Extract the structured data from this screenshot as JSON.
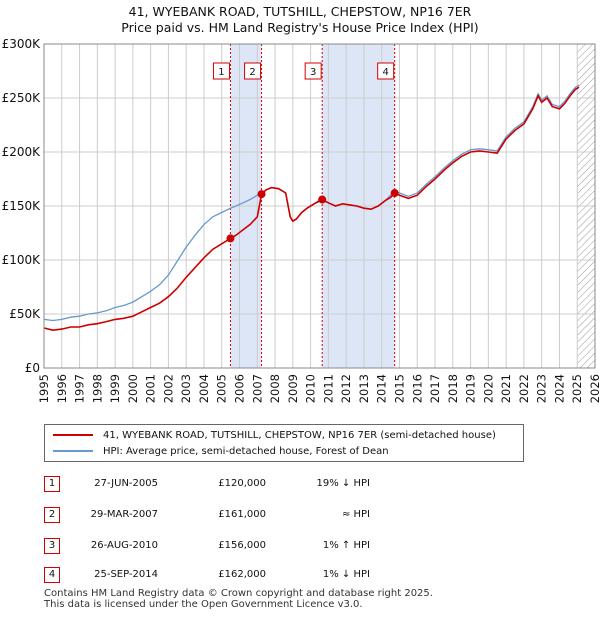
{
  "title_line1": "41, WYEBANK ROAD, TUTSHILL, CHEPSTOW, NP16 7ER",
  "title_line2": "Price paid vs. HM Land Registry's House Price Index (HPI)",
  "chart_data": {
    "type": "line",
    "xlim": [
      1995,
      2026
    ],
    "ylim": [
      0,
      300000
    ],
    "x_ticks": [
      1995,
      1996,
      1997,
      1998,
      1999,
      2000,
      2001,
      2002,
      2003,
      2004,
      2005,
      2006,
      2007,
      2008,
      2009,
      2010,
      2011,
      2012,
      2013,
      2014,
      2015,
      2016,
      2017,
      2018,
      2019,
      2020,
      2021,
      2022,
      2023,
      2024,
      2025,
      2026
    ],
    "y_ticks": [
      0,
      50000,
      100000,
      150000,
      200000,
      250000,
      300000
    ],
    "y_tick_labels": [
      "£0",
      "£50K",
      "£100K",
      "£150K",
      "£200K",
      "£250K",
      "£300K"
    ],
    "hatch_from": 2025.0,
    "series": [
      {
        "name": "41, WYEBANK ROAD, TUTSHILL, CHEPSTOW, NP16 7ER (semi-detached house)",
        "color": "#cc0000",
        "x": [
          1995.0,
          1995.5,
          1996.0,
          1996.5,
          1997.0,
          1997.5,
          1998.0,
          1998.5,
          1999.0,
          1999.5,
          2000.0,
          2000.5,
          2001.0,
          2001.5,
          2002.0,
          2002.5,
          2003.0,
          2003.5,
          2004.0,
          2004.5,
          2005.0,
          2005.49,
          2005.8,
          2006.2,
          2006.6,
          2007.0,
          2007.24,
          2007.5,
          2007.8,
          2008.2,
          2008.6,
          2008.85,
          2009.0,
          2009.2,
          2009.5,
          2009.8,
          2010.2,
          2010.5,
          2010.65,
          2011.0,
          2011.4,
          2011.8,
          2012.2,
          2012.6,
          2013.0,
          2013.4,
          2013.8,
          2014.2,
          2014.5,
          2014.73,
          2015.0,
          2015.5,
          2016.0,
          2016.5,
          2017.0,
          2017.5,
          2018.0,
          2018.5,
          2019.0,
          2019.5,
          2020.0,
          2020.5,
          2021.0,
          2021.5,
          2022.0,
          2022.5,
          2022.8,
          2023.0,
          2023.3,
          2023.6,
          2024.0,
          2024.3,
          2024.6,
          2024.9,
          2025.1
        ],
        "y": [
          37000,
          35000,
          36000,
          38000,
          38000,
          40000,
          41000,
          43000,
          45000,
          46000,
          48000,
          52000,
          56000,
          60000,
          66000,
          74000,
          84000,
          93000,
          102000,
          110000,
          115000,
          120000,
          123000,
          128000,
          133000,
          140000,
          161000,
          165000,
          167000,
          166000,
          162000,
          140000,
          136000,
          138000,
          144000,
          148000,
          152000,
          155000,
          156000,
          153000,
          150000,
          152000,
          151000,
          150000,
          148000,
          147000,
          150000,
          155000,
          158000,
          162000,
          160000,
          157000,
          160000,
          168000,
          175000,
          183000,
          190000,
          196000,
          200000,
          201000,
          200000,
          199000,
          212000,
          220000,
          226000,
          240000,
          252000,
          246000,
          250000,
          242000,
          240000,
          245000,
          252000,
          258000,
          260000
        ]
      },
      {
        "name": "HPI: Average price, semi-detached house, Forest of Dean",
        "color": "#6699cc",
        "x": [
          1995.0,
          1995.5,
          1996.0,
          1996.5,
          1997.0,
          1997.5,
          1998.0,
          1998.5,
          1999.0,
          1999.5,
          2000.0,
          2000.5,
          2001.0,
          2001.5,
          2002.0,
          2002.5,
          2003.0,
          2003.5,
          2004.0,
          2004.5,
          2005.0,
          2005.49,
          2005.8,
          2006.2,
          2006.6,
          2007.0,
          2007.24,
          2007.5,
          2007.8,
          2008.2,
          2008.6,
          2008.85,
          2009.0,
          2009.2,
          2009.5,
          2009.8,
          2010.2,
          2010.5,
          2010.65,
          2011.0,
          2011.4,
          2011.8,
          2012.2,
          2012.6,
          2013.0,
          2013.4,
          2013.8,
          2014.2,
          2014.5,
          2014.73,
          2015.0,
          2015.5,
          2016.0,
          2016.5,
          2017.0,
          2017.5,
          2018.0,
          2018.5,
          2019.0,
          2019.5,
          2020.0,
          2020.5,
          2021.0,
          2021.5,
          2022.0,
          2022.5,
          2022.8,
          2023.0,
          2023.3,
          2023.6,
          2024.0,
          2024.3,
          2024.6,
          2024.9,
          2025.1
        ],
        "y": [
          45000,
          44000,
          45000,
          47000,
          48000,
          50000,
          51000,
          53000,
          56000,
          58000,
          61000,
          66000,
          71000,
          77000,
          86000,
          99000,
          112000,
          123000,
          133000,
          140000,
          144000,
          148000,
          150000,
          153000,
          156000,
          160000,
          162000,
          165000,
          167000,
          166000,
          162000,
          140000,
          136000,
          138000,
          144000,
          148000,
          152000,
          154000,
          155000,
          153000,
          150000,
          152000,
          151000,
          150000,
          148000,
          147000,
          150000,
          155000,
          160000,
          164000,
          162000,
          159000,
          162000,
          170000,
          177000,
          185000,
          192000,
          198000,
          202000,
          203000,
          202000,
          201000,
          214000,
          222000,
          228000,
          242000,
          254000,
          248000,
          252000,
          244000,
          242000,
          247000,
          254000,
          260000,
          262000
        ]
      }
    ],
    "sales": [
      {
        "label": "1",
        "x": 2005.49,
        "y": 120000
      },
      {
        "label": "2",
        "x": 2007.24,
        "y": 161000
      },
      {
        "label": "3",
        "x": 2010.65,
        "y": 156000
      },
      {
        "label": "4",
        "x": 2014.73,
        "y": 162000
      }
    ],
    "shaded_spans": [
      [
        2005.49,
        2007.24
      ],
      [
        2010.65,
        2014.73
      ]
    ]
  },
  "legend": {
    "property": "41, WYEBANK ROAD, TUTSHILL, CHEPSTOW, NP16 7ER (semi-detached house)",
    "hpi": "HPI: Average price, semi-detached house, Forest of Dean"
  },
  "transactions": [
    {
      "num": "1",
      "date": "27-JUN-2005",
      "price": "£120,000",
      "rel": "19% ↓ HPI"
    },
    {
      "num": "2",
      "date": "29-MAR-2007",
      "price": "£161,000",
      "rel": "≈ HPI"
    },
    {
      "num": "3",
      "date": "26-AUG-2010",
      "price": "£156,000",
      "rel": "1% ↑ HPI"
    },
    {
      "num": "4",
      "date": "25-SEP-2014",
      "price": "£162,000",
      "rel": "1% ↓ HPI"
    }
  ],
  "footer_line1": "Contains HM Land Registry data © Crown copyright and database right 2025.",
  "footer_line2": "This data is licensed under the Open Government Licence v3.0.",
  "colors": {
    "property": "#cc0000",
    "hpi": "#6699cc",
    "shade": "#dde6f7",
    "vline": "#d00000",
    "badge": "#d00000"
  }
}
